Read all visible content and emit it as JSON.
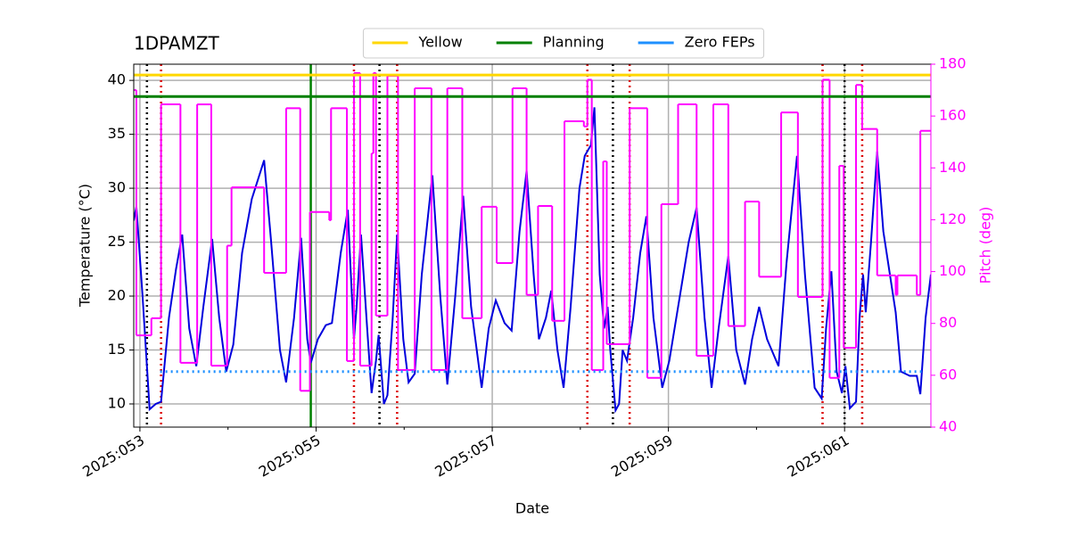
{
  "chart_data": {
    "type": "line",
    "title": "1DPAMZT",
    "xlabel": "Date",
    "ylabel": "Temperature (°C)",
    "y2label": "Pitch (deg)",
    "xlim": [
      52.93,
      61.98
    ],
    "xticks": [
      {
        "value": 53,
        "label": "2025:053"
      },
      {
        "value": 55,
        "label": "2025:055"
      },
      {
        "value": 57,
        "label": "2025:057"
      },
      {
        "value": 59,
        "label": "2025:059"
      },
      {
        "value": 61,
        "label": "2025:061"
      }
    ],
    "xminorticks": [
      54,
      56,
      58,
      60
    ],
    "ylim": [
      7.85,
      41.5
    ],
    "yticks": [
      10,
      15,
      20,
      25,
      30,
      35,
      40
    ],
    "y2lim": [
      40,
      180
    ],
    "y2ticks": [
      40,
      60,
      80,
      100,
      120,
      140,
      160,
      180
    ],
    "grid": true,
    "legend": "upper center",
    "series": [
      {
        "color": "#0000dd",
        "x": [
          52.93,
          52.96,
          53.03,
          53.11,
          53.18,
          53.24,
          53.33,
          53.41,
          53.48,
          53.56,
          53.64,
          53.72,
          53.82,
          53.9,
          53.98,
          54.06,
          54.16,
          54.27,
          54.41,
          54.49,
          54.59,
          54.66,
          54.75,
          54.83,
          54.9,
          54.94,
          55.02,
          55.11,
          55.18,
          55.28,
          55.36,
          55.43,
          55.46,
          55.51,
          55.58,
          55.63,
          55.68,
          55.71,
          55.77,
          55.81,
          55.87,
          55.92,
          55.99,
          56.05,
          56.12,
          56.2,
          56.32,
          56.41,
          56.49,
          56.58,
          56.67,
          56.76,
          56.88,
          56.96,
          57.04,
          57.14,
          57.22,
          57.31,
          57.39,
          57.47,
          57.53,
          57.61,
          57.67,
          57.74,
          57.81,
          57.89,
          57.99,
          58.05,
          58.12,
          58.16,
          58.22,
          58.27,
          58.31,
          58.34,
          58.4,
          58.44,
          58.48,
          58.53,
          58.6,
          58.68,
          58.75,
          58.83,
          58.93,
          59.01,
          59.11,
          59.23,
          59.32,
          59.41,
          59.49,
          59.57,
          59.68,
          59.77,
          59.87,
          59.95,
          60.03,
          60.12,
          60.25,
          60.34,
          60.46,
          60.55,
          60.66,
          60.74,
          60.79,
          60.85,
          60.91,
          60.97,
          61.01,
          61.06,
          61.13,
          61.17,
          61.21,
          61.24,
          61.3,
          61.37,
          61.44,
          61.58,
          61.64,
          61.74,
          61.82,
          61.86,
          61.92,
          61.98
        ],
        "values": [
          27,
          28.3,
          20,
          9.5,
          10,
          10.2,
          18,
          22.5,
          25.7,
          17,
          13.5,
          19,
          25.3,
          18,
          13,
          15.5,
          24,
          29,
          32.6,
          25,
          15,
          12,
          18,
          25.4,
          16,
          13.8,
          16,
          17.3,
          17.5,
          24,
          28,
          16,
          19,
          25.7,
          17,
          11,
          14,
          16.4,
          10,
          10.8,
          18,
          25.7,
          16,
          12,
          12.8,
          22,
          31.2,
          20,
          11.8,
          20,
          29.3,
          19,
          11.5,
          17,
          19.6,
          17.5,
          16.8,
          26,
          31.6,
          22,
          16,
          18,
          20.5,
          15,
          11.5,
          19,
          30,
          33,
          34,
          37.5,
          22,
          17,
          19,
          15,
          9.4,
          10,
          15,
          14,
          18,
          24,
          27.4,
          18,
          11.5,
          14,
          19,
          25,
          28.2,
          18,
          11.5,
          17,
          23.7,
          15,
          11.8,
          16,
          19,
          16,
          13.5,
          23,
          33,
          22,
          11.5,
          10.5,
          17,
          22.3,
          13,
          11,
          13.5,
          9.6,
          10.2,
          18,
          22,
          18.5,
          25,
          33.4,
          26,
          18.5,
          13,
          12.6,
          12.6,
          10.9,
          18,
          22
        ]
      },
      {
        "color": "#ff00ff",
        "axis": "y2",
        "step": "post",
        "x": [
          52.93,
          52.96,
          53.13,
          53.24,
          53.46,
          53.65,
          53.81,
          53.99,
          54.04,
          54.41,
          54.66,
          54.82,
          54.93,
          55.15,
          55.17,
          55.35,
          55.43,
          55.5,
          55.63,
          55.65,
          55.68,
          55.81,
          55.93,
          56.12,
          56.31,
          56.49,
          56.66,
          56.88,
          57.05,
          57.23,
          57.39,
          57.52,
          57.68,
          57.82,
          58.04,
          58.08,
          58.13,
          58.26,
          58.3,
          58.56,
          58.76,
          58.92,
          59.11,
          59.32,
          59.51,
          59.68,
          59.87,
          60.03,
          60.28,
          60.47,
          60.75,
          60.83,
          60.94,
          60.99,
          61.13,
          61.2,
          61.37,
          61.58,
          61.6,
          61.82,
          61.86,
          61.98
        ],
        "values": [
          170,
          75.4,
          82,
          164.5,
          64.8,
          164.5,
          63.7,
          110,
          132.5,
          99.5,
          163,
          54,
          123,
          119.8,
          163,
          65.5,
          176.6,
          63.7,
          145.6,
          176.6,
          83,
          175.5,
          62,
          170.7,
          62,
          170.7,
          82,
          125,
          103.3,
          170.7,
          91,
          125.3,
          81,
          158,
          156,
          174,
          62,
          142.5,
          72,
          163,
          59,
          126,
          164.5,
          67.5,
          164.5,
          79,
          127,
          98,
          161.4,
          90.2,
          174,
          59,
          140.8,
          70.6,
          172,
          155,
          98.5,
          91,
          98.5,
          91,
          154.3,
          154.3
        ]
      },
      {
        "name": "Yellow",
        "color": "#ffd700",
        "x": [
          52.93,
          61.98
        ],
        "values": [
          40.5,
          40.5
        ]
      },
      {
        "name": "Planning",
        "color": "#008000",
        "x": [
          52.93,
          61.98
        ],
        "values": [
          38.5,
          38.5
        ]
      },
      {
        "name": "Zero FEPs",
        "color": "#1e90ff",
        "dash": "dotted",
        "x": [
          53.23,
          61.89
        ],
        "values": [
          13,
          13
        ]
      }
    ],
    "vlines": [
      {
        "x": 54.94,
        "color": "#008000"
      },
      {
        "x": 53.08,
        "color": "#000000",
        "dash": "dotted"
      },
      {
        "x": 55.72,
        "color": "#000000",
        "dash": "dotted"
      },
      {
        "x": 58.37,
        "color": "#000000",
        "dash": "dotted"
      },
      {
        "x": 61.0,
        "color": "#000000",
        "dash": "dotted"
      },
      {
        "x": 53.24,
        "color": "#dd0000",
        "dash": "dotted"
      },
      {
        "x": 55.43,
        "color": "#dd0000",
        "dash": "dotted"
      },
      {
        "x": 55.92,
        "color": "#dd0000",
        "dash": "dotted"
      },
      {
        "x": 58.08,
        "color": "#dd0000",
        "dash": "dotted"
      },
      {
        "x": 58.56,
        "color": "#dd0000",
        "dash": "dotted"
      },
      {
        "x": 60.75,
        "color": "#dd0000",
        "dash": "dotted"
      },
      {
        "x": 61.2,
        "color": "#dd0000",
        "dash": "dotted"
      }
    ]
  }
}
